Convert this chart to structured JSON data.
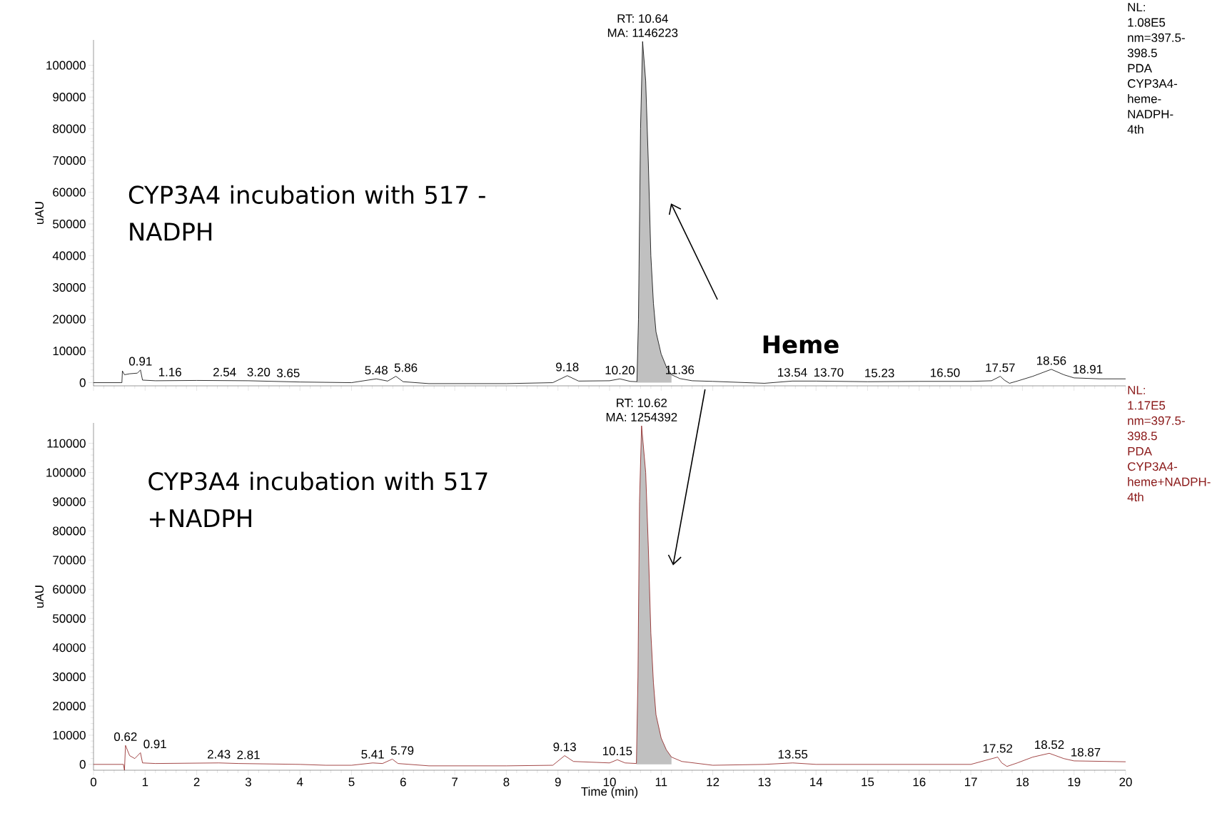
{
  "chart_data": [
    {
      "type": "line",
      "ylabel": "uAU",
      "xlim": [
        0,
        20
      ],
      "ylim": [
        -1000,
        108000
      ],
      "xticks": [
        0,
        1,
        2,
        3,
        4,
        5,
        6,
        7,
        8,
        9,
        10,
        11,
        12,
        13,
        14,
        15,
        16,
        17,
        18,
        19,
        20
      ],
      "yticks": [
        0,
        10000,
        20000,
        30000,
        40000,
        50000,
        60000,
        70000,
        80000,
        90000,
        100000
      ],
      "tick_labels": "y",
      "series": [
        {
          "type": "area",
          "color": "#c0c0c0",
          "x": [
            10.53,
            10.56,
            10.6,
            10.64,
            10.7,
            10.75,
            10.8,
            10.85,
            10.9,
            11.0,
            11.1,
            11.2
          ],
          "values": [
            300,
            20000,
            80000,
            107500,
            95000,
            70000,
            40000,
            25000,
            16000,
            9000,
            5000,
            2500
          ]
        },
        {
          "color": "#000000",
          "x": [
            0,
            0.55,
            0.56,
            0.6,
            0.7,
            0.85,
            0.91,
            0.95,
            1.2,
            2,
            3,
            4,
            5,
            5.48,
            5.7,
            5.86,
            6,
            6.5,
            8,
            8.9,
            9.18,
            9.4,
            10,
            10.2,
            10.4,
            10.53,
            10.56,
            10.6,
            10.64,
            10.7,
            10.75,
            10.8,
            10.85,
            10.9,
            11.0,
            11.1,
            11.2,
            11.36,
            11.6,
            12,
            13,
            13.54,
            14,
            15,
            16,
            17,
            17.4,
            17.57,
            17.65,
            17.75,
            17.9,
            18.2,
            18.56,
            18.8,
            19,
            19.5,
            20
          ],
          "values": [
            0,
            0,
            3700,
            2500,
            2800,
            3000,
            4000,
            800,
            600,
            700,
            600,
            200,
            0,
            1200,
            500,
            2000,
            300,
            -300,
            -300,
            0,
            2200,
            500,
            600,
            1200,
            400,
            300,
            20000,
            80000,
            107500,
            95000,
            70000,
            40000,
            25000,
            16000,
            9000,
            5000,
            2500,
            1300,
            600,
            400,
            -200,
            500,
            500,
            300,
            400,
            400,
            600,
            2000,
            800,
            -200,
            500,
            2000,
            4200,
            2500,
            1500,
            1200,
            1200
          ]
        }
      ],
      "annotations": [
        "CYP3A4 incubation with 517 -NADPH",
        "NL: 1.08E5 nm=397.5-398.5 PDA CYP3A4-heme-NADPH-4th",
        "Heme",
        {
          "text": "RT: 10.64",
          "x": 10.64,
          "y": 107500
        },
        {
          "text": "MA: 1146223",
          "x": 10.64,
          "y": 107500
        },
        {
          "text": "0.91",
          "x": 0.91,
          "y": 4000
        },
        {
          "text": "1.16",
          "x": 1.16,
          "y": 600
        },
        {
          "text": "2.54",
          "x": 2.54,
          "y": 600
        },
        {
          "text": "3.20",
          "x": 3.2,
          "y": 600
        },
        {
          "text": "3.65",
          "x": 3.65,
          "y": 300
        },
        {
          "text": "5.48",
          "x": 5.48,
          "y": 1200
        },
        {
          "text": "5.86",
          "x": 5.86,
          "y": 2000
        },
        {
          "text": "9.18",
          "x": 9.18,
          "y": 2200
        },
        {
          "text": "10.20",
          "x": 10.2,
          "y": 1200
        },
        {
          "text": "11.36",
          "x": 11.36,
          "y": 1300
        },
        {
          "text": "13.54",
          "x": 13.54,
          "y": 500
        },
        {
          "text": "13.70",
          "x": 13.7,
          "y": 500
        },
        {
          "text": "15.23",
          "x": 15.23,
          "y": 300
        },
        {
          "text": "16.50",
          "x": 16.5,
          "y": 400
        },
        {
          "text": "17.57",
          "x": 17.57,
          "y": 2000
        },
        {
          "text": "18.56",
          "x": 18.56,
          "y": 4200
        },
        {
          "text": "18.91",
          "x": 18.91,
          "y": 1500
        }
      ]
    },
    {
      "type": "line",
      "ylabel": "uAU",
      "xlabel": "Time (min)",
      "xlim": [
        0,
        20
      ],
      "ylim": [
        -2000,
        117000
      ],
      "xticks": [
        0,
        1,
        2,
        3,
        4,
        5,
        6,
        7,
        8,
        9,
        10,
        11,
        12,
        13,
        14,
        15,
        16,
        17,
        18,
        19,
        20
      ],
      "yticks": [
        0,
        10000,
        20000,
        30000,
        40000,
        50000,
        60000,
        70000,
        80000,
        90000,
        100000,
        110000
      ],
      "series": [
        {
          "type": "area",
          "color": "#c0c0c0",
          "x": [
            10.52,
            10.55,
            10.58,
            10.62,
            10.7,
            10.75,
            10.8,
            10.85,
            10.9,
            11.0,
            11.1,
            11.2
          ],
          "values": [
            300,
            30000,
            90000,
            116000,
            100000,
            75000,
            45000,
            28000,
            17000,
            9000,
            5000,
            2500
          ]
        },
        {
          "color": "#8b1a1a",
          "x": [
            0,
            0.58,
            0.6,
            0.62,
            0.7,
            0.8,
            0.91,
            0.95,
            1.2,
            2.43,
            2.81,
            4,
            4.5,
            5,
            5.41,
            5.6,
            5.79,
            5.9,
            6.5,
            8,
            8.9,
            9.13,
            9.3,
            10,
            10.15,
            10.3,
            10.52,
            10.55,
            10.58,
            10.62,
            10.7,
            10.75,
            10.8,
            10.85,
            10.9,
            11.0,
            11.1,
            11.2,
            11.4,
            12,
            13,
            13.55,
            14,
            15,
            16,
            17,
            17.52,
            17.6,
            17.7,
            17.9,
            18.2,
            18.52,
            18.8,
            19,
            20
          ],
          "values": [
            0,
            0,
            -2000,
            6500,
            3000,
            2000,
            4000,
            500,
            300,
            500,
            300,
            0,
            -300,
            -300,
            500,
            300,
            1800,
            300,
            -500,
            -500,
            -300,
            3000,
            1000,
            500,
            1600,
            500,
            300,
            30000,
            90000,
            116000,
            100000,
            75000,
            45000,
            28000,
            17000,
            9000,
            5000,
            2500,
            1000,
            -300,
            0,
            500,
            0,
            0,
            0,
            0,
            2500,
            500,
            -700,
            500,
            2500,
            3800,
            2000,
            1200,
            900
          ]
        }
      ],
      "annotations": [
        "CYP3A4 incubation with 517 +NADPH",
        "NL: 1.17E5 nm=397.5-398.5 PDA CYP3A4-heme+NADPH-4th",
        {
          "text": "RT: 10.62",
          "x": 10.62,
          "y": 116000
        },
        {
          "text": "MA: 1254392",
          "x": 10.62,
          "y": 116000
        },
        {
          "text": "0.62",
          "x": 0.62,
          "y": 6500
        },
        {
          "text": "0.91",
          "x": 0.91,
          "y": 4000
        },
        {
          "text": "2.43",
          "x": 2.43,
          "y": 500
        },
        {
          "text": "2.81",
          "x": 2.81,
          "y": 300
        },
        {
          "text": "5.41",
          "x": 5.41,
          "y": 500
        },
        {
          "text": "5.79",
          "x": 5.79,
          "y": 1800
        },
        {
          "text": "9.13",
          "x": 9.13,
          "y": 3000
        },
        {
          "text": "10.15",
          "x": 10.15,
          "y": 1600
        },
        {
          "text": "13.55",
          "x": 13.55,
          "y": 500
        },
        {
          "text": "17.52",
          "x": 17.52,
          "y": 2500
        },
        {
          "text": "18.52",
          "x": 18.52,
          "y": 3800
        },
        {
          "text": "18.87",
          "x": 18.87,
          "y": 1200
        }
      ]
    }
  ]
}
